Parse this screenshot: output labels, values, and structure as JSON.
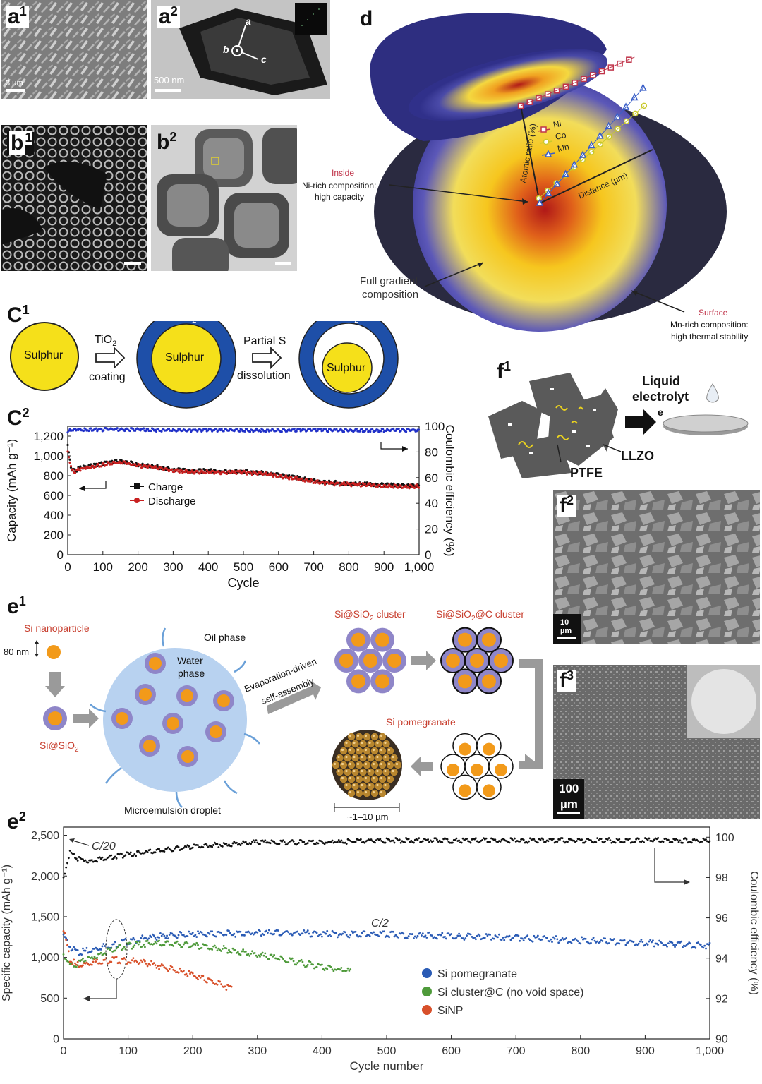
{
  "panel_labels": {
    "a1": "a",
    "a2": "a",
    "b1": "b",
    "b2": "b",
    "d": "d",
    "c1": "C",
    "c2": "C",
    "e1": "e",
    "e2": "e",
    "f1": "f",
    "f2": "f",
    "f3": "f",
    "sup1": "1",
    "sup2": "2",
    "sup3": "3"
  },
  "a": {
    "scale1": "3 µm",
    "scale2": "500 nm",
    "axis_a": "a",
    "axis_b": "b",
    "axis_c": "c"
  },
  "d": {
    "legend": [
      "Ni",
      "Co",
      "Mn"
    ],
    "ylabel": "Atomic ratio (%)",
    "xlabel": "Distance (µm)",
    "inside_title": "Inside",
    "inside_l1": "Ni-rich composition:",
    "inside_l2": "high capacity",
    "full_l1": "Full gradient",
    "full_l2": "composition",
    "surface_title": "Surface",
    "surface_l1": "Mn-rich composition:",
    "surface_l2": "high thermal stability",
    "colors": {
      "ni": "#c0344a",
      "co": "#c8c82a",
      "mn": "#3a5fc8"
    }
  },
  "c1": {
    "sulphur": "Sulphur",
    "tio2": "TiO",
    "tio2_sub": "2",
    "step1_top": "TiO",
    "step1_sub": "2",
    "step1_bottom": "coating",
    "step2_top": "Partial S",
    "step2_bottom": "dissolution",
    "colors": {
      "yellow": "#f5e01a",
      "blue": "#1e4fa8"
    }
  },
  "chart_data": [
    {
      "id": "c2",
      "type": "line",
      "xlabel": "Cycle",
      "ylabel": "Capacity (mAh g⁻¹)",
      "y2label": "Coulombic efficiency (%)",
      "xlim": [
        0,
        1000
      ],
      "ylim": [
        0,
        1300
      ],
      "y2lim": [
        0,
        100
      ],
      "xticks": [
        "0",
        "100",
        "200",
        "300",
        "400",
        "500",
        "600",
        "700",
        "800",
        "900",
        "1,000"
      ],
      "yticks": [
        "0",
        "200",
        "400",
        "600",
        "800",
        "1,000",
        "1,200"
      ],
      "y2ticks": [
        "0",
        "20",
        "40",
        "60",
        "80",
        "100"
      ],
      "legend_position": "center-left",
      "series": [
        {
          "name": "Charge",
          "color": "#111111",
          "x": [
            0,
            5,
            10,
            20,
            40,
            60,
            80,
            100,
            130,
            160,
            200,
            250,
            300,
            350,
            400,
            450,
            500,
            550,
            600,
            650,
            700,
            750,
            800,
            850,
            900,
            950,
            1000
          ],
          "y": [
            1120,
            980,
            880,
            860,
            890,
            910,
            920,
            930,
            955,
            950,
            920,
            900,
            870,
            855,
            860,
            850,
            850,
            840,
            815,
            790,
            760,
            740,
            730,
            725,
            715,
            710,
            710
          ]
        },
        {
          "name": "Discharge",
          "color": "#c82020",
          "x": [
            0,
            5,
            10,
            20,
            40,
            60,
            80,
            100,
            130,
            160,
            200,
            250,
            300,
            350,
            400,
            450,
            500,
            550,
            600,
            650,
            700,
            750,
            800,
            850,
            900,
            950,
            1000
          ],
          "y": [
            1050,
            960,
            870,
            850,
            880,
            900,
            910,
            920,
            945,
            940,
            910,
            890,
            860,
            845,
            850,
            840,
            840,
            830,
            805,
            780,
            750,
            730,
            720,
            715,
            705,
            700,
            700
          ]
        },
        {
          "name": "Coulombic efficiency",
          "axis": "right",
          "color": "#2030c8",
          "x": [
            0,
            10,
            50,
            100,
            200,
            300,
            400,
            500,
            600,
            700,
            800,
            900,
            1000
          ],
          "y": [
            96,
            98,
            98,
            98,
            98,
            97.5,
            97.5,
            97.5,
            97.5,
            97.5,
            97.5,
            97.5,
            97.5
          ]
        }
      ]
    },
    {
      "id": "e2",
      "type": "scatter",
      "xlabel": "Cycle number",
      "ylabel": "Specific capacity (mAh g⁻¹)",
      "y2label": "Coulombic efficiency (%)",
      "xlim": [
        0,
        1000
      ],
      "ylim": [
        0,
        2600
      ],
      "y2lim": [
        90,
        100.5
      ],
      "xticks": [
        "0",
        "100",
        "200",
        "300",
        "400",
        "500",
        "600",
        "700",
        "800",
        "900",
        "1,000"
      ],
      "yticks": [
        "0",
        "500",
        "1,000",
        "1,500",
        "2,000",
        "2,500"
      ],
      "y2ticks": [
        "90",
        "92",
        "94",
        "96",
        "98",
        "100"
      ],
      "annotations": [
        "C/20",
        "C/2"
      ],
      "legend_position": "bottom-center",
      "series": [
        {
          "name": "Si pomegranate",
          "color": "#2a5bb5",
          "x": [
            0,
            10,
            20,
            40,
            60,
            80,
            100,
            130,
            160,
            200,
            250,
            300,
            350,
            400,
            500,
            600,
            700,
            800,
            900,
            1000
          ],
          "y": [
            1300,
            1150,
            1080,
            1100,
            1150,
            1180,
            1220,
            1260,
            1290,
            1300,
            1310,
            1320,
            1320,
            1310,
            1300,
            1280,
            1260,
            1230,
            1200,
            1160
          ]
        },
        {
          "name": "Si cluster@C (no void space)",
          "color": "#4e9a3a",
          "x": [
            0,
            10,
            20,
            40,
            60,
            80,
            100,
            130,
            160,
            200,
            250,
            300,
            350,
            400,
            445
          ],
          "y": [
            1050,
            920,
            940,
            1000,
            1080,
            1130,
            1160,
            1190,
            1190,
            1170,
            1120,
            1050,
            980,
            900,
            850
          ]
        },
        {
          "name": "SiNP",
          "color": "#d8502a",
          "x": [
            0,
            10,
            20,
            40,
            60,
            80,
            100,
            130,
            160,
            200,
            230,
            260
          ],
          "y": [
            1350,
            1000,
            920,
            950,
            980,
            990,
            980,
            950,
            890,
            800,
            720,
            640
          ]
        },
        {
          "name": "Coulombic efficiency",
          "axis": "right",
          "color": "#111111",
          "x": [
            0,
            5,
            10,
            20,
            40,
            60,
            80,
            100,
            150,
            200,
            250,
            300,
            400,
            500,
            600,
            700,
            800,
            900,
            1000
          ],
          "y": [
            98,
            98.8,
            99.3,
            99.0,
            98.9,
            99.0,
            99.1,
            99.2,
            99.4,
            99.6,
            99.7,
            99.8,
            99.8,
            99.9,
            99.9,
            99.9,
            99.9,
            99.9,
            99.9
          ]
        }
      ]
    }
  ],
  "c2": {
    "legend": [
      "Charge",
      "Discharge"
    ]
  },
  "e1": {
    "si_np": "Si nanoparticle",
    "size": "80 nm",
    "si_sio2": "Si@SiO",
    "si_sio2_sub": "2",
    "oil": "Oil phase",
    "water1": "Water",
    "water2": "phase",
    "micro": "Microemulsion droplet",
    "evap1": "Evaporation-driven",
    "evap2": "self-assembly",
    "cluster1": "Si@SiO",
    "cluster1_sub": "2",
    "cluster1_tail": " cluster",
    "cluster2": "Si@SiO",
    "cluster2_sub": "2",
    "cluster2_tail": "@C cluster",
    "pomegranate": "Si pomegranate",
    "range": "~1–10 µm",
    "colors": {
      "orange": "#f29a1a",
      "shell": "#8f86c8",
      "droplet": "#b8d2f0",
      "red": "#c84030"
    }
  },
  "e2": {
    "legend": [
      "Si pomegranate",
      "Si cluster@C (no void space)",
      "SiNP"
    ],
    "ann1": "C/20",
    "ann2": "C/2"
  },
  "f1": {
    "title1": "Liquid",
    "title2": "electrolyt",
    "e": "e",
    "llzo": "LLZO",
    "ptfe": "PTFE"
  },
  "f2": {
    "scale1": "10",
    "scale2": "µm"
  },
  "f3": {
    "scale1": "100",
    "scale2": "µm"
  }
}
